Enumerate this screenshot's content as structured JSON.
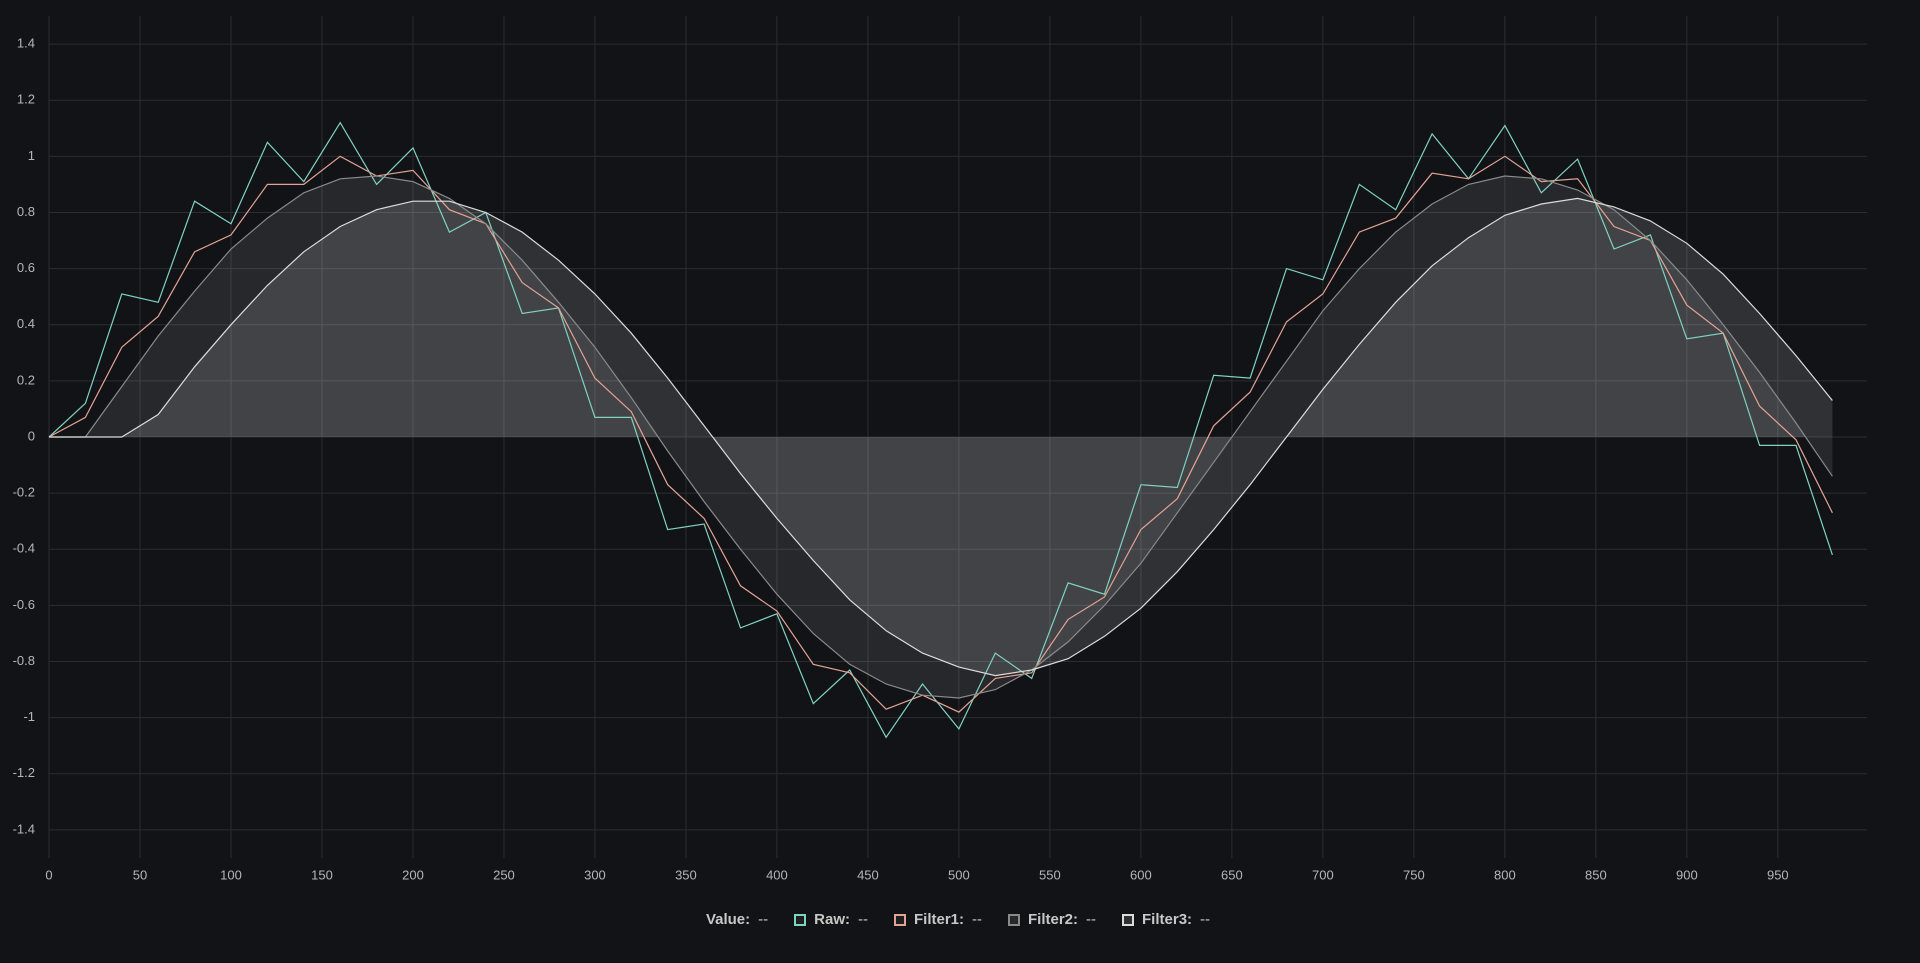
{
  "chart_data": {
    "type": "line",
    "x": [
      0,
      20,
      40,
      60,
      80,
      100,
      120,
      140,
      160,
      180,
      200,
      220,
      240,
      260,
      280,
      300,
      320,
      340,
      360,
      380,
      400,
      420,
      440,
      460,
      480,
      500,
      520,
      540,
      560,
      580,
      600,
      620,
      640,
      660,
      680,
      700,
      720,
      740,
      760,
      780,
      800,
      820,
      840,
      860,
      880,
      900,
      920,
      940,
      960,
      980
    ],
    "series": [
      {
        "name": "Raw:",
        "color": "#7fd3c0",
        "readout": "--",
        "values": [
          0,
          0.12,
          0.51,
          0.48,
          0.84,
          0.76,
          1.05,
          0.91,
          1.12,
          0.9,
          1.03,
          0.73,
          0.8,
          0.44,
          0.46,
          0.07,
          0.07,
          -0.33,
          -0.31,
          -0.68,
          -0.63,
          -0.95,
          -0.83,
          -1.07,
          -0.88,
          -1.04,
          -0.77,
          -0.86,
          -0.52,
          -0.56,
          -0.17,
          -0.18,
          0.22,
          0.21,
          0.6,
          0.56,
          0.9,
          0.81,
          1.08,
          0.92,
          1.11,
          0.87,
          0.99,
          0.67,
          0.72,
          0.35,
          0.37,
          -0.03,
          -0.03,
          -0.42
        ]
      },
      {
        "name": "Filter1:",
        "color": "#e3a394",
        "readout": "--",
        "values": [
          0,
          0.07,
          0.32,
          0.43,
          0.66,
          0.72,
          0.9,
          0.9,
          1.0,
          0.93,
          0.95,
          0.81,
          0.76,
          0.55,
          0.46,
          0.21,
          0.09,
          -0.17,
          -0.29,
          -0.53,
          -0.62,
          -0.81,
          -0.84,
          -0.97,
          -0.92,
          -0.98,
          -0.86,
          -0.84,
          -0.65,
          -0.57,
          -0.33,
          -0.22,
          0.04,
          0.16,
          0.41,
          0.51,
          0.73,
          0.78,
          0.94,
          0.92,
          1.0,
          0.91,
          0.92,
          0.75,
          0.7,
          0.47,
          0.37,
          0.11,
          -0.01,
          -0.27
        ]
      },
      {
        "name": "Filter2:",
        "color": "#8a8a8a",
        "fill": "rgba(255,255,255,0.09)",
        "readout": "--",
        "values": [
          0,
          0,
          0.18,
          0.36,
          0.52,
          0.67,
          0.78,
          0.87,
          0.92,
          0.93,
          0.91,
          0.85,
          0.76,
          0.63,
          0.48,
          0.32,
          0.14,
          -0.05,
          -0.23,
          -0.4,
          -0.56,
          -0.7,
          -0.81,
          -0.88,
          -0.92,
          -0.93,
          -0.9,
          -0.83,
          -0.73,
          -0.6,
          -0.45,
          -0.27,
          -0.09,
          0.09,
          0.27,
          0.45,
          0.6,
          0.73,
          0.83,
          0.9,
          0.93,
          0.92,
          0.88,
          0.81,
          0.7,
          0.56,
          0.4,
          0.23,
          0.05,
          -0.14
        ]
      },
      {
        "name": "Filter3:",
        "color": "#dcdcdc",
        "fill": "rgba(255,255,255,0.13)",
        "readout": "--",
        "values": [
          0,
          0,
          0,
          0.08,
          0.25,
          0.4,
          0.54,
          0.66,
          0.75,
          0.81,
          0.84,
          0.84,
          0.8,
          0.73,
          0.63,
          0.51,
          0.37,
          0.21,
          0.04,
          -0.13,
          -0.29,
          -0.44,
          -0.58,
          -0.69,
          -0.77,
          -0.82,
          -0.85,
          -0.83,
          -0.79,
          -0.71,
          -0.61,
          -0.48,
          -0.33,
          -0.17,
          0,
          0.17,
          0.33,
          0.48,
          0.61,
          0.71,
          0.79,
          0.83,
          0.85,
          0.82,
          0.77,
          0.69,
          0.58,
          0.44,
          0.29,
          0.13
        ]
      }
    ],
    "legend": {
      "x_label": "Value:",
      "x_readout": "--"
    },
    "xlim": [
      0,
      999
    ],
    "xticks": [
      0,
      50,
      100,
      150,
      200,
      250,
      300,
      350,
      400,
      450,
      500,
      550,
      600,
      650,
      700,
      750,
      800,
      850,
      900,
      950
    ],
    "ylim": [
      -1.5,
      1.5
    ],
    "yticks": [
      -1.4,
      -1.2,
      -1,
      -0.8,
      -0.6,
      -0.4,
      -0.2,
      0,
      0.2,
      0.4,
      0.6,
      0.8,
      1,
      1.2,
      1.4
    ],
    "grid": true
  }
}
